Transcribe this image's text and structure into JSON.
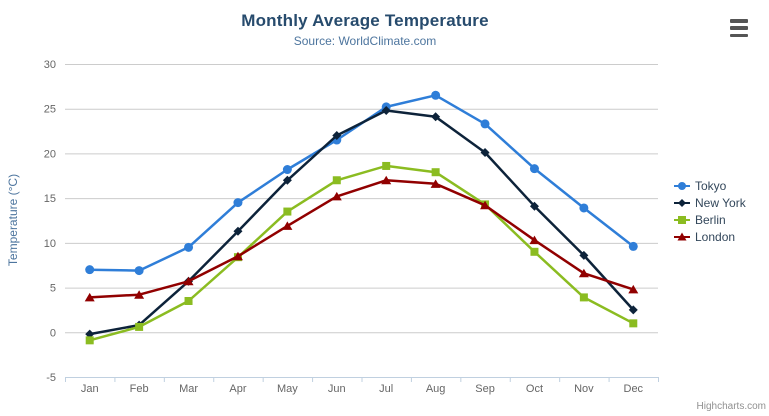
{
  "chart": {
    "title": "Monthly Average Temperature",
    "subtitle": "Source: WorldClimate.com",
    "credits": "Highcharts.com",
    "export_menu_icon": "hamburger-icon"
  },
  "chart_data": {
    "type": "line",
    "title": "Monthly Average Temperature",
    "subtitle": "Source: WorldClimate.com",
    "xlabel": "",
    "ylabel": "Temperature (°C)",
    "categories": [
      "Jan",
      "Feb",
      "Mar",
      "Apr",
      "May",
      "Jun",
      "Jul",
      "Aug",
      "Sep",
      "Oct",
      "Nov",
      "Dec"
    ],
    "series": [
      {
        "name": "Tokyo",
        "marker": "circle",
        "color": "#2f7ed8",
        "values": [
          7.0,
          6.9,
          9.5,
          14.5,
          18.2,
          21.5,
          25.2,
          26.5,
          23.3,
          18.3,
          13.9,
          9.6
        ]
      },
      {
        "name": "New York",
        "marker": "diamond",
        "color": "#0d233a",
        "values": [
          -0.2,
          0.8,
          5.7,
          11.3,
          17.0,
          22.0,
          24.8,
          24.1,
          20.1,
          14.1,
          8.6,
          2.5
        ]
      },
      {
        "name": "Berlin",
        "marker": "square",
        "color": "#8bbc21",
        "values": [
          -0.9,
          0.6,
          3.5,
          8.4,
          13.5,
          17.0,
          18.6,
          17.9,
          14.3,
          9.0,
          3.9,
          1.0
        ]
      },
      {
        "name": "London",
        "marker": "triangle",
        "color": "#910000",
        "values": [
          3.9,
          4.2,
          5.7,
          8.5,
          11.9,
          15.2,
          17.0,
          16.6,
          14.2,
          10.3,
          6.6,
          4.8
        ]
      }
    ],
    "ylim": [
      -5,
      30
    ],
    "ytick_step": 5,
    "yticks": [
      -5,
      0,
      5,
      10,
      15,
      20,
      25,
      30
    ],
    "grid": true,
    "legend_position": "right",
    "style": {
      "grid_color": "#cccccc",
      "axis_color": "#c0d0e0",
      "tick_label_color": "#666666",
      "title_color": "#274b6d",
      "subtitle_color": "#4d759e",
      "axis_title_color": "#4d759e",
      "legend_text_color": "#33475b",
      "credits_color": "#909090"
    }
  }
}
